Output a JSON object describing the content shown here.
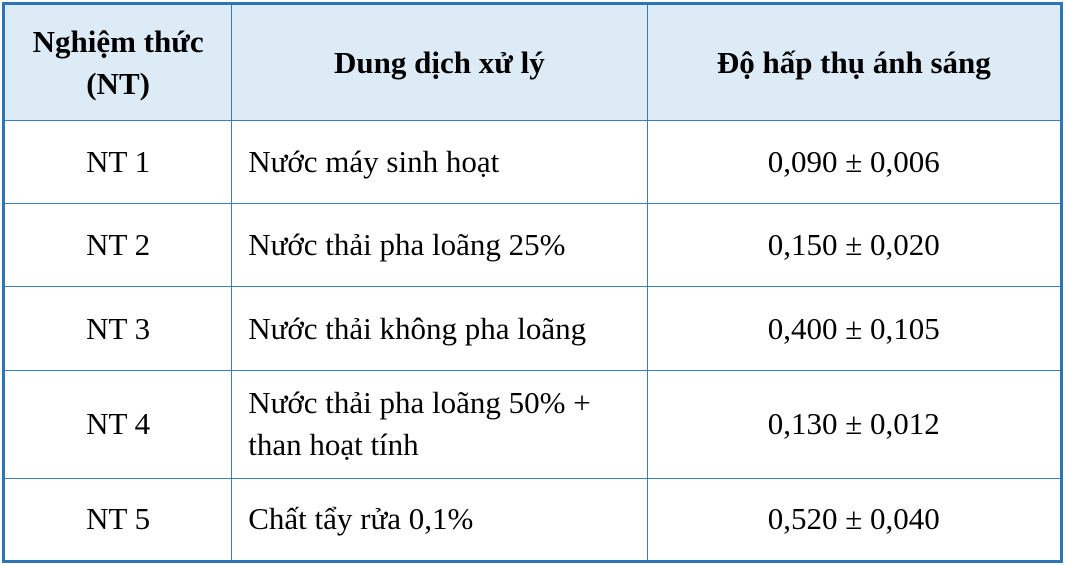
{
  "table": {
    "header": [
      "Nghiệm thức (NT)",
      "Dung dịch xử lý",
      "Độ hấp thụ ánh sáng"
    ],
    "rows": [
      [
        "NT 1",
        "Nước máy sinh hoạt",
        "0,090 ± 0,006"
      ],
      [
        "NT 2",
        "Nước thải pha loãng 25%",
        "0,150 ± 0,020"
      ],
      [
        "NT 3",
        "Nước thải không pha loãng",
        "0,400 ± 0,105"
      ],
      [
        "NT 4",
        "Nước thải pha loãng 50% + than hoạt tính",
        "0,130 ± 0,012"
      ],
      [
        "NT 5",
        "Chất tẩy rửa 0,1%",
        "0,520 ± 0,040"
      ]
    ]
  }
}
